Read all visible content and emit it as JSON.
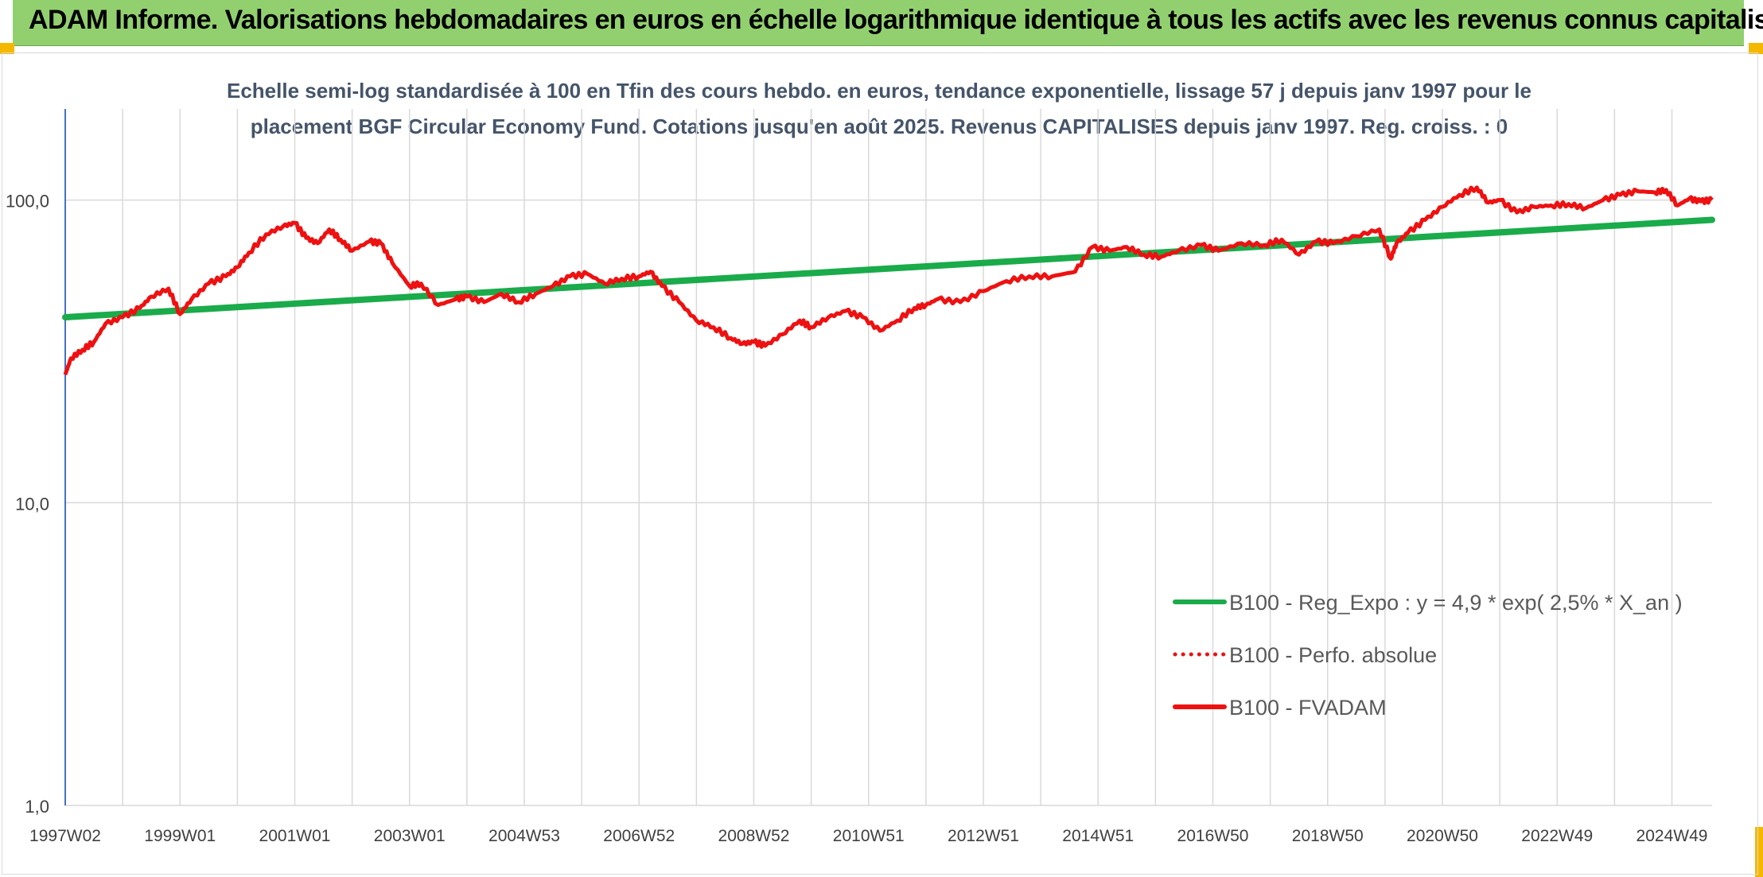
{
  "header": {
    "title": "ADAM Informe. Valorisations hebdomadaires en euros en échelle logarithmique identique à tous les actifs avec les revenus connus capitalisés"
  },
  "colors": {
    "banner": "#92d06f",
    "corner_accent": "#f5b800",
    "trend_line": "#1aab4a",
    "price_line": "#ee1111",
    "title_text": "#44546a"
  },
  "chart_data": {
    "type": "line",
    "title_line1": "Echelle semi-log standardisée à 100 en Tfin des cours hebdo. en euros, tendance exponentielle, lissage 57 j depuis janv 1997 pour le",
    "title_line2": "placement BGF Circular Economy Fund. Cotations jusqu'en août 2025. Revenus CAPITALISES depuis janv 1997. Reg. croiss. : 0",
    "y_scale": "log",
    "ylim": [
      1,
      200
    ],
    "y_ticks": [
      1,
      10,
      100
    ],
    "y_tick_labels": [
      "1,0",
      "10,0",
      "100,0"
    ],
    "xlim": [
      1997.0,
      2025.7
    ],
    "x_tick_labels": [
      "1997W02",
      "1999W01",
      "2001W01",
      "2003W01",
      "2004W53",
      "2006W52",
      "2008W52",
      "2010W51",
      "2012W51",
      "2014W51",
      "2016W50",
      "2018W50",
      "2020W50",
      "2022W49",
      "2024W49"
    ],
    "x_tick_values": [
      1997.0,
      1999.0,
      2001.0,
      2003.0,
      2005.0,
      2007.0,
      2009.0,
      2011.0,
      2013.0,
      2015.0,
      2017.0,
      2019.0,
      2021.0,
      2023.0,
      2025.0
    ],
    "vertical_grid": true,
    "horizontal_grid": true,
    "legend_position": "bottom-right",
    "legend": [
      {
        "label": "B100 - Reg_Expo : y = 4,9 * exp( 2,5% *  X_an )",
        "style": "solid-green"
      },
      {
        "label": "B100 - Perfo. absolue",
        "style": "dotted-red"
      },
      {
        "label": "B100 - FVADAM",
        "style": "solid-red"
      }
    ],
    "series": [
      {
        "name": "B100 - Reg_Expo : y = 4,9 * exp( 2,5% *  X_an )",
        "x": [
          1997.0,
          2025.7
        ],
        "y": [
          41.0,
          86.0
        ]
      },
      {
        "name": "B100 - FVADAM",
        "x": [
          1997.0,
          1997.1,
          1997.3,
          1997.5,
          1997.7,
          1998.0,
          1998.3,
          1998.5,
          1998.8,
          1999.0,
          1999.2,
          1999.5,
          1999.8,
          2000.0,
          2000.2,
          2000.5,
          2000.8,
          2001.0,
          2001.2,
          2001.4,
          2001.6,
          2001.8,
          2002.0,
          2002.3,
          2002.5,
          2002.7,
          2003.0,
          2003.2,
          2003.5,
          2003.8,
          2004.0,
          2004.3,
          2004.6,
          2004.9,
          2005.2,
          2005.5,
          2005.8,
          2006.1,
          2006.4,
          2006.7,
          2007.0,
          2007.2,
          2007.4,
          2007.7,
          2008.0,
          2008.3,
          2008.6,
          2008.8,
          2009.0,
          2009.2,
          2009.5,
          2009.8,
          2010.0,
          2010.3,
          2010.6,
          2010.9,
          2011.2,
          2011.5,
          2011.8,
          2012.0,
          2012.2,
          2012.6,
          2013.0,
          2013.4,
          2013.8,
          2014.2,
          2014.6,
          2014.9,
          2015.2,
          2015.5,
          2015.8,
          2016.1,
          2016.4,
          2016.8,
          2017.1,
          2017.5,
          2017.9,
          2018.2,
          2018.5,
          2018.8,
          2019.1,
          2019.5,
          2019.9,
          2020.1,
          2020.2,
          2020.4,
          2020.7,
          2021.0,
          2021.3,
          2021.6,
          2021.8,
          2022.0,
          2022.3,
          2022.6,
          2022.9,
          2023.2,
          2023.5,
          2023.8,
          2024.1,
          2024.4,
          2024.7,
          2024.9,
          2025.1,
          2025.3,
          2025.5,
          2025.7
        ],
        "y": [
          26.5,
          30.0,
          32.0,
          34.0,
          39.0,
          41.0,
          44.0,
          48.0,
          51.0,
          42.0,
          47.0,
          53.0,
          56.0,
          60.0,
          67.0,
          77.0,
          82.0,
          84.0,
          75.0,
          72.0,
          80.0,
          74.0,
          68.0,
          73.0,
          72.0,
          62.0,
          52.0,
          53.0,
          45.0,
          47.0,
          48.0,
          46.0,
          49.0,
          46.0,
          49.0,
          52.0,
          56.0,
          57.0,
          53.0,
          55.0,
          56.0,
          58.0,
          52.0,
          46.0,
          40.0,
          38.0,
          35.0,
          33.5,
          34.0,
          33.0,
          36.0,
          40.0,
          38.0,
          41.0,
          43.0,
          41.0,
          37.0,
          40.0,
          44.0,
          45.0,
          47.0,
          46.0,
          50.0,
          54.0,
          56.0,
          56.0,
          58.0,
          70.0,
          68.0,
          70.0,
          66.0,
          65.0,
          68.0,
          71.0,
          68.0,
          72.0,
          71.0,
          74.0,
          66.0,
          73.0,
          72.0,
          76.0,
          80.0,
          64.0,
          72.0,
          78.0,
          86.0,
          95.0,
          104.0,
          110.0,
          98.0,
          100.0,
          91.0,
          95.0,
          96.0,
          97.0,
          94.0,
          100.0,
          104.0,
          107.0,
          106.0,
          108.0,
          96.0,
          101.0,
          99.0,
          100.0
        ]
      }
    ]
  }
}
